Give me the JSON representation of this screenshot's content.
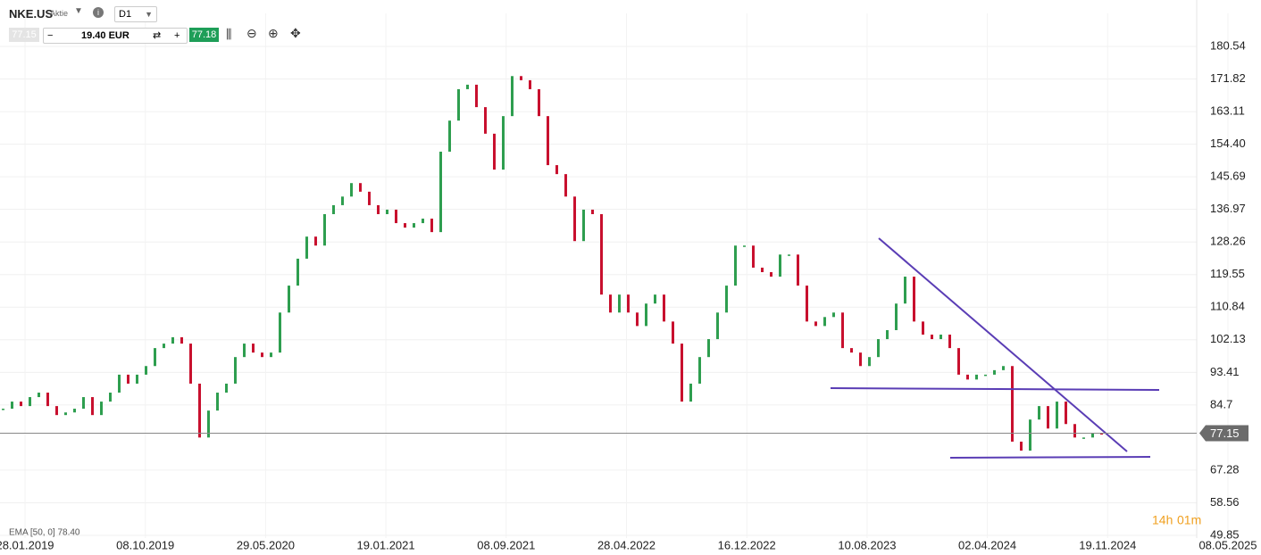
{
  "header": {
    "symbol": "NKE.US",
    "kind": "Aktie",
    "timeframe": "D1",
    "bid": "77.15",
    "volume": "19.40 EUR",
    "ask": "77.18",
    "indicator": "EMA [50, 0] 78.40",
    "countdown_hours": "14h",
    "countdown_minutes": "01m"
  },
  "chart_data": {
    "type": "candlestick",
    "values": [
      83.7,
      85.6,
      84.4,
      86.8,
      88.0,
      84.4,
      82.0,
      82.7,
      83.7,
      86.8,
      82.0,
      85.6,
      88.0,
      92.8,
      90.4,
      92.8,
      95.1,
      99.9,
      101.1,
      102.8,
      101.1,
      90.4,
      76.0,
      83.2,
      88.0,
      90.4,
      97.5,
      101.1,
      98.7,
      97.5,
      98.7,
      109.4,
      116.6,
      123.8,
      129.7,
      127.3,
      135.7,
      138.1,
      140.4,
      144.0,
      141.7,
      138.1,
      135.7,
      136.9,
      133.3,
      132.1,
      133.3,
      134.5,
      130.9,
      152.4,
      160.7,
      169.1,
      170.3,
      164.3,
      157.2,
      147.6,
      161.9,
      172.6,
      171.5,
      169.1,
      161.9,
      148.8,
      146.4,
      140.4,
      128.5,
      136.9,
      135.7,
      114.2,
      109.4,
      114.2,
      109.4,
      105.8,
      111.8,
      114.2,
      107.0,
      101.1,
      85.6,
      90.4,
      97.5,
      102.3,
      109.4,
      116.6,
      127.3,
      127.3,
      121.4,
      120.2,
      119.0,
      124.9,
      124.9,
      116.6,
      107.0,
      105.8,
      108.2,
      109.4,
      99.9,
      98.7,
      95.1,
      97.5,
      102.3,
      104.7,
      111.8,
      119.0,
      107.0,
      103.5,
      102.3,
      103.5,
      99.9,
      92.8,
      91.5,
      92.8,
      92.8,
      94.0,
      95.1,
      74.9,
      72.5,
      80.8,
      84.4,
      78.4,
      85.6,
      79.6,
      76.0,
      76.0,
      77.2,
      76.8
    ],
    "up_color": "#2e9e4f",
    "down_color": "#c8102e",
    "x_labels": [
      "28.01.2019",
      "08.10.2019",
      "29.05.2020",
      "19.01.2021",
      "08.09.2021",
      "28.04.2022",
      "16.12.2022",
      "10.08.2023",
      "02.04.2024",
      "19.11.2024",
      "08.05.2025"
    ],
    "ylim": [
      49.13,
      189.36
    ],
    "yticks": [
      49.85,
      58.56,
      67.28,
      84.7,
      93.41,
      102.13,
      110.84,
      119.55,
      128.26,
      136.97,
      145.69,
      {
        "value": 154.4,
        "label": "154.40"
      },
      163.11,
      171.82,
      180.54
    ],
    "last_price": 77.15,
    "grid": true
  }
}
